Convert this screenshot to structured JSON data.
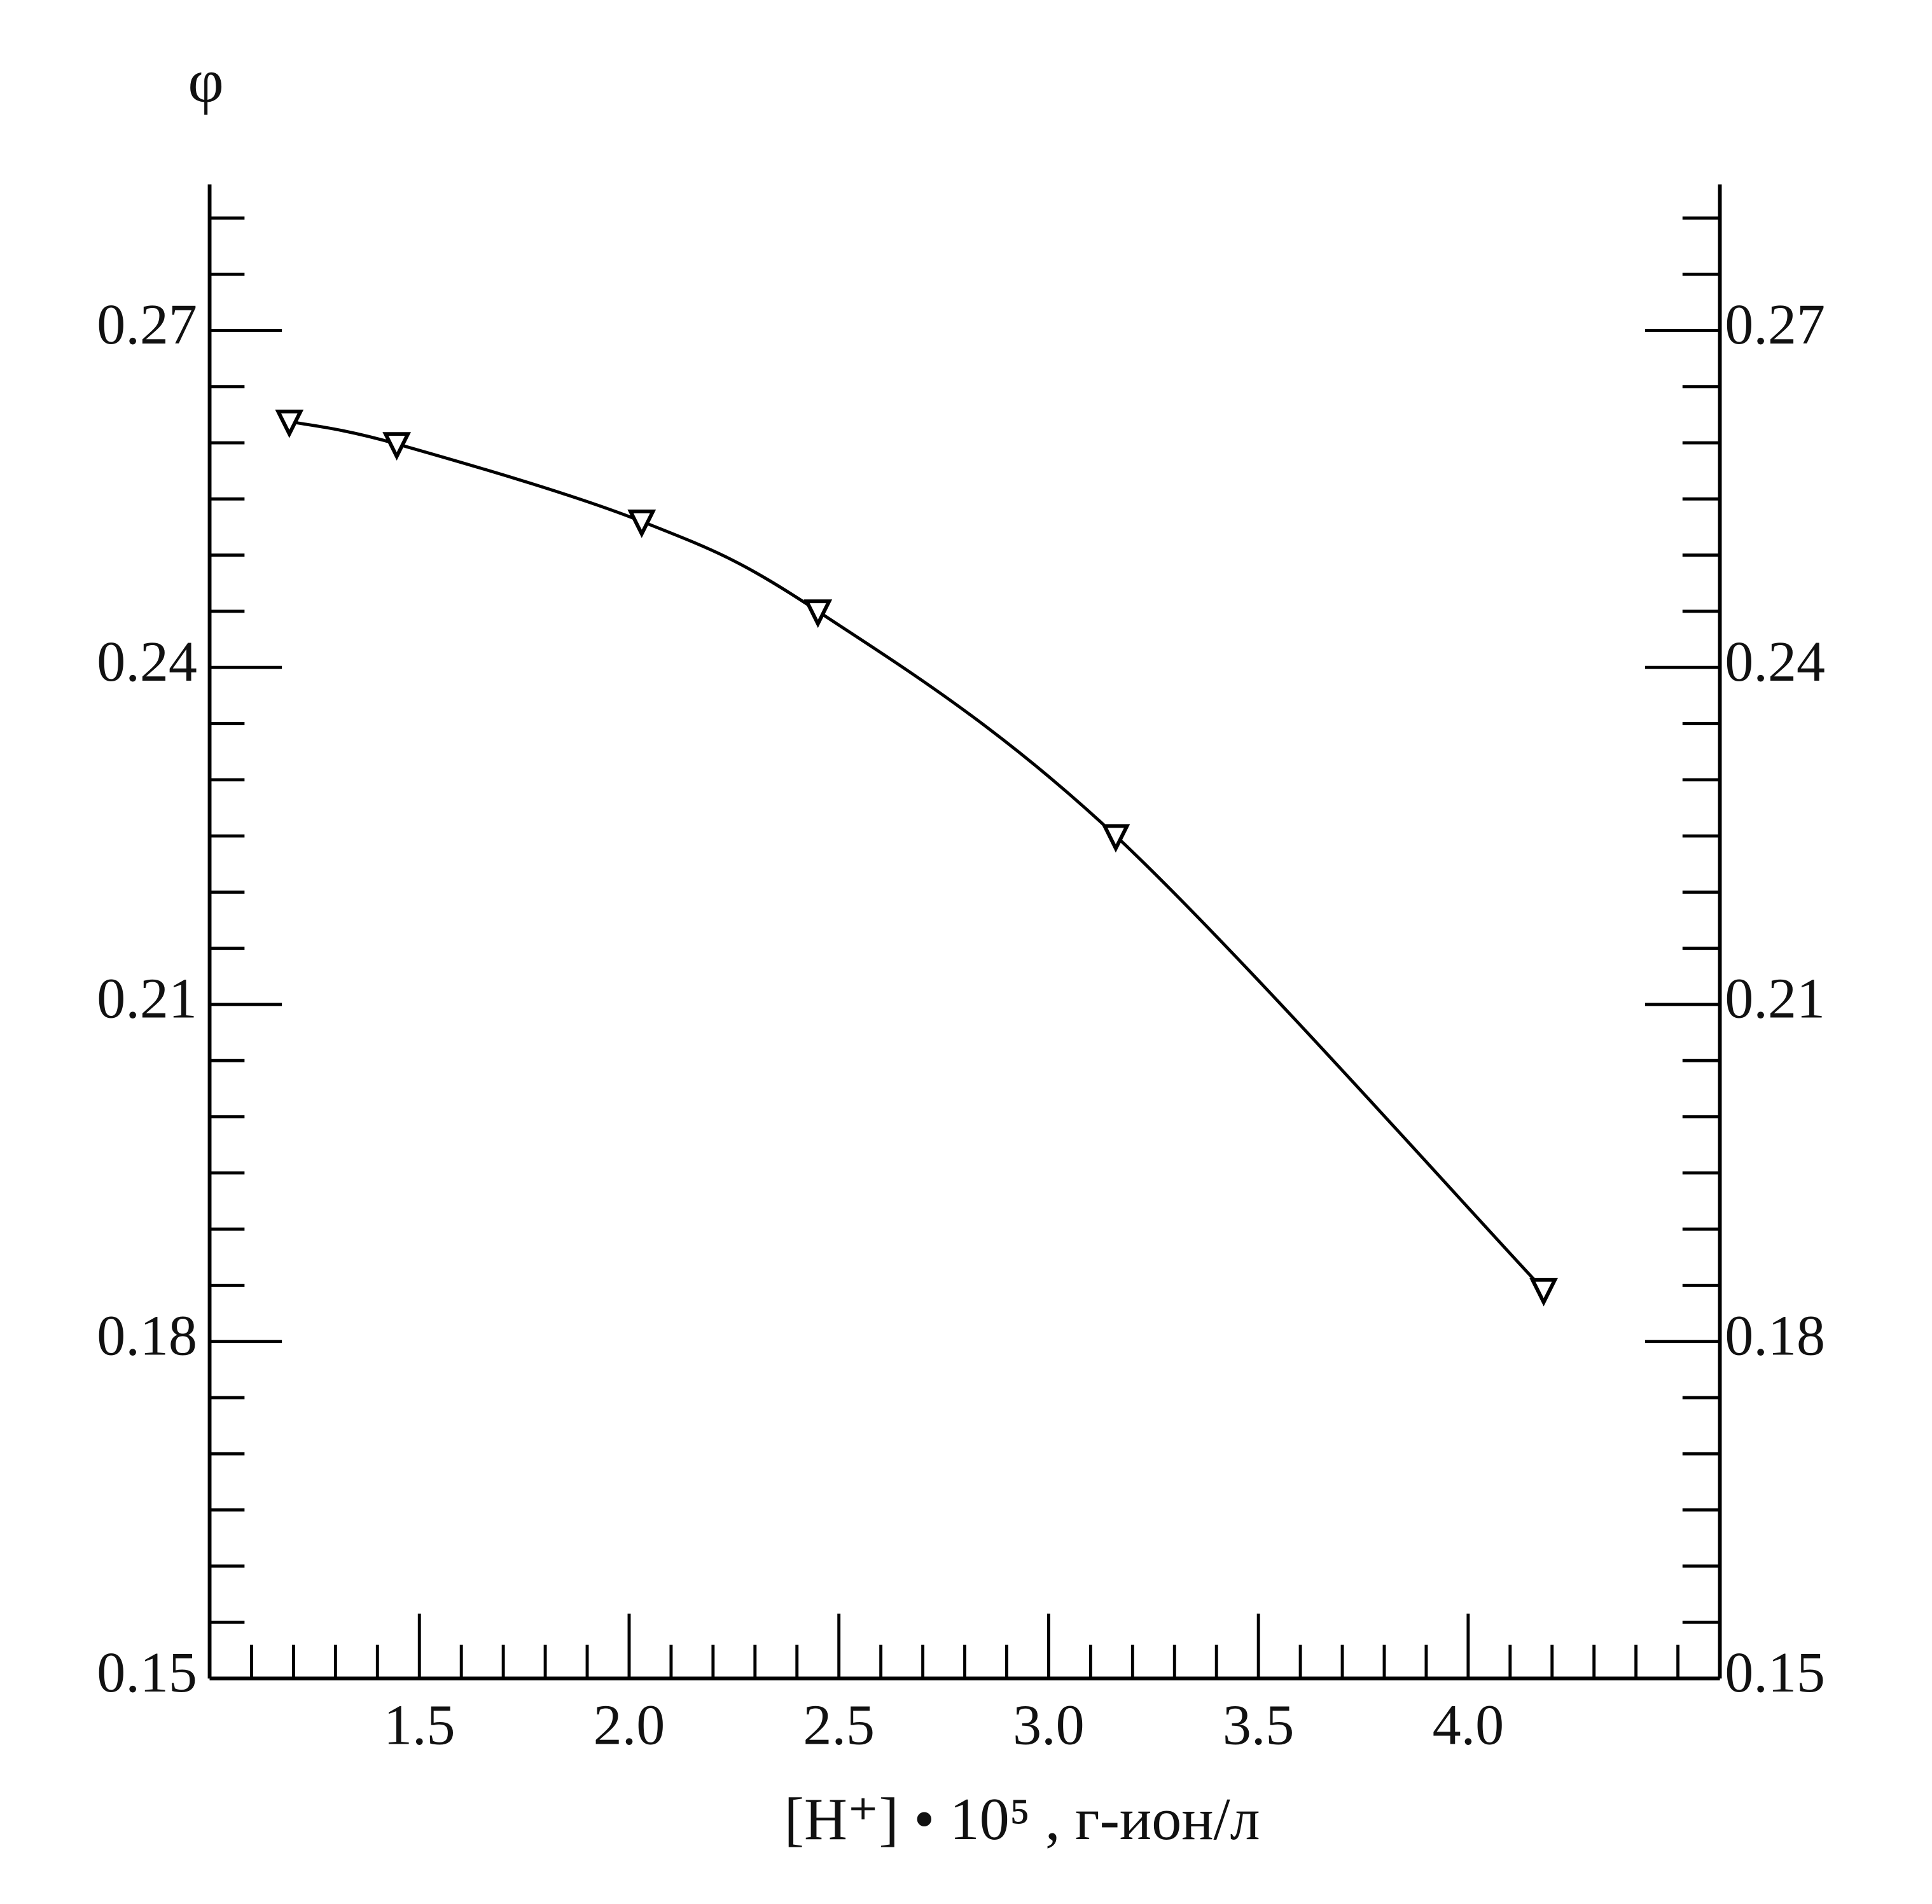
{
  "chart_data": {
    "type": "line",
    "ylabel": "φ",
    "xlabel": "[H⁺] • 10⁵ , г-ион/л",
    "xlim": [
      1.0,
      4.6
    ],
    "ylim": [
      0.15,
      0.283
    ],
    "xticks": [
      1.5,
      {
        "value": 2.0,
        "label": "2.0"
      },
      2.5,
      {
        "value": 3.0,
        "label": "3.0"
      },
      3.5,
      {
        "value": 4.0,
        "label": "4.0"
      }
    ],
    "x_minor_ticks": [
      1.1,
      1.2,
      1.3,
      1.4,
      1.6,
      1.7,
      1.8,
      1.9,
      2.1,
      2.2,
      2.3,
      2.4,
      2.6,
      2.7,
      2.8,
      2.9,
      3.1,
      3.2,
      3.3,
      3.4,
      3.6,
      3.7,
      3.8,
      3.9,
      4.1,
      4.2,
      4.3,
      4.4,
      4.5
    ],
    "yticks": [
      {
        "value": 0.15,
        "label": "0.15"
      },
      0.18,
      0.21,
      0.24,
      0.27
    ],
    "y_minor_ticks": [
      0.155,
      0.16,
      0.165,
      0.17,
      0.175,
      0.185,
      0.19,
      0.195,
      0.2,
      0.205,
      0.215,
      0.22,
      0.225,
      0.23,
      0.235,
      0.245,
      0.25,
      0.255,
      0.26,
      0.265,
      0.275,
      0.28
    ],
    "series": [
      {
        "color": "#000000",
        "marker": "triangle-down",
        "x": [
          1.19,
          1.446,
          2.03,
          2.45,
          3.16,
          4.18
        ],
        "values": [
          0.2619,
          0.2599,
          0.253,
          0.245,
          0.225,
          0.1846
        ]
      }
    ]
  }
}
